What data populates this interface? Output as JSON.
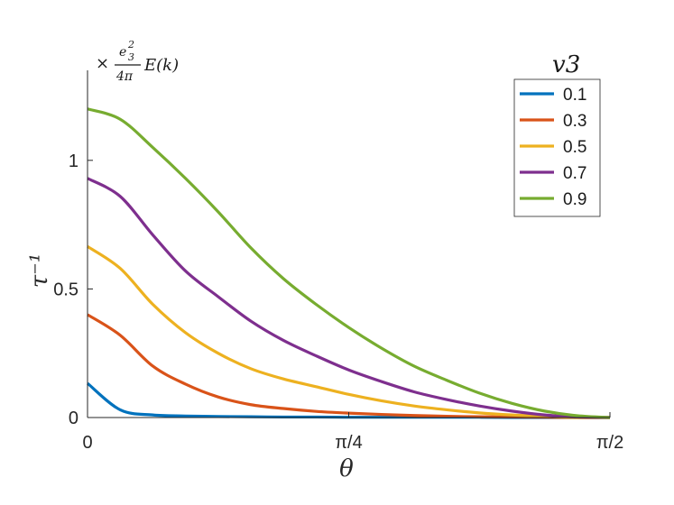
{
  "chart_data": {
    "type": "line",
    "title": "",
    "xlabel": "θ",
    "ylabel": "τ⁻¹",
    "xlim": [
      0,
      1.5708
    ],
    "ylim": [
      0,
      1.35
    ],
    "x_ticks": [
      {
        "value": 0,
        "label": "0"
      },
      {
        "value": 0.7854,
        "label": "π/4"
      },
      {
        "value": 1.5708,
        "label": "π/2"
      }
    ],
    "y_ticks": [
      {
        "value": 0,
        "label": "0"
      },
      {
        "value": 0.5,
        "label": "0.5"
      },
      {
        "value": 1,
        "label": "1"
      }
    ],
    "unit_note": {
      "prefix": "×",
      "numerator": "e",
      "sub": "3",
      "sup": "2",
      "denominator": "4π",
      "suffix": "E(k)"
    },
    "legend_title": "v3",
    "legend_position": "top-right",
    "grid": false,
    "x": [
      0,
      0.0982,
      0.1963,
      0.2945,
      0.3927,
      0.4909,
      0.589,
      0.6872,
      0.7854,
      0.8836,
      0.9817,
      1.0799,
      1.1781,
      1.2763,
      1.3744,
      1.4726,
      1.5708
    ],
    "series": [
      {
        "name": "0.1",
        "color": "#0072bd",
        "values": [
          0.133,
          0.03,
          0.01,
          0.006,
          0.004,
          0.003,
          0.002,
          0.002,
          0.001,
          0.001,
          0.001,
          0.001,
          0.001,
          0.0,
          0.0,
          0.0,
          0.0
        ]
      },
      {
        "name": "0.3",
        "color": "#d95319",
        "values": [
          0.4,
          0.32,
          0.2,
          0.13,
          0.08,
          0.05,
          0.035,
          0.024,
          0.017,
          0.012,
          0.008,
          0.005,
          0.003,
          0.002,
          0.001,
          0.0,
          0.0
        ]
      },
      {
        "name": "0.5",
        "color": "#edb120",
        "values": [
          0.665,
          0.58,
          0.44,
          0.33,
          0.25,
          0.19,
          0.15,
          0.12,
          0.09,
          0.065,
          0.045,
          0.03,
          0.018,
          0.01,
          0.005,
          0.0,
          0.0
        ]
      },
      {
        "name": "0.7",
        "color": "#7e2f8e",
        "values": [
          0.93,
          0.86,
          0.71,
          0.57,
          0.47,
          0.375,
          0.3,
          0.24,
          0.185,
          0.14,
          0.1,
          0.07,
          0.045,
          0.025,
          0.01,
          0.002,
          0.0
        ]
      },
      {
        "name": "0.9",
        "color": "#77ac30",
        "values": [
          1.2,
          1.16,
          1.05,
          0.93,
          0.8,
          0.66,
          0.54,
          0.44,
          0.35,
          0.27,
          0.2,
          0.145,
          0.095,
          0.055,
          0.025,
          0.007,
          0.0
        ]
      }
    ]
  }
}
